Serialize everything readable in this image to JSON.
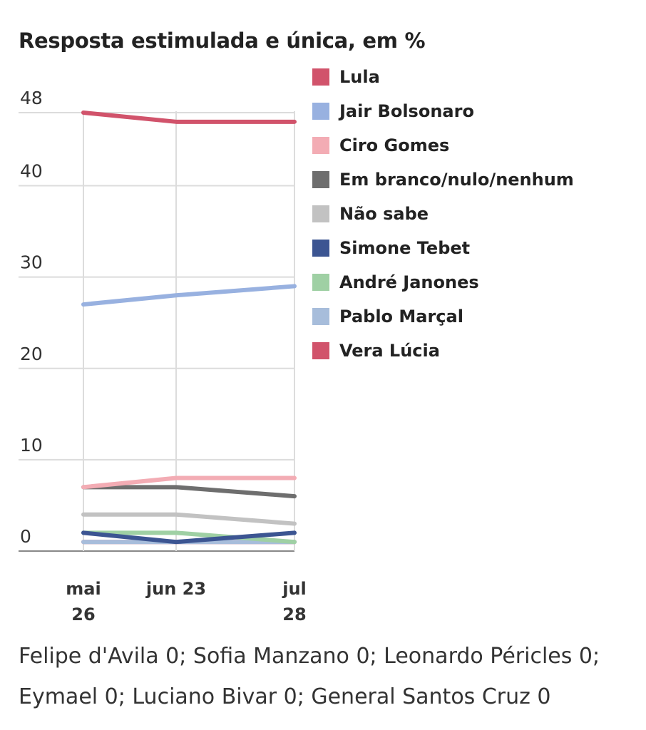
{
  "chart_data": {
    "type": "line",
    "title": "Resposta estimulada e única, em %",
    "categories": [
      "mai 26",
      "jun 23",
      "jul 28"
    ],
    "x_tick_lines": [
      [
        "mai",
        "26"
      ],
      [
        "jun 23"
      ],
      [
        "jul",
        "28"
      ]
    ],
    "y_ticks": [
      "48",
      "40",
      "30",
      "20",
      "10",
      "0"
    ],
    "ylim": [
      0,
      48
    ],
    "grid": true,
    "legend_position": "right",
    "series": [
      {
        "name": "Lula",
        "color": "#d1536b",
        "values": [
          48,
          47,
          47
        ]
      },
      {
        "name": "Jair Bolsonaro",
        "color": "#98b1e0",
        "values": [
          27,
          28,
          29
        ]
      },
      {
        "name": "Ciro Gomes",
        "color": "#f3acb4",
        "values": [
          7,
          8,
          8
        ]
      },
      {
        "name": "Em branco/nulo/nenhum",
        "color": "#6e6e6e",
        "values": [
          7,
          7,
          6
        ]
      },
      {
        "name": "Não sabe",
        "color": "#c2c2c2",
        "values": [
          4,
          4,
          3
        ]
      },
      {
        "name": "Simone Tebet",
        "color": "#3c5592",
        "values": [
          2,
          1,
          2
        ]
      },
      {
        "name": "André Janones",
        "color": "#9fd0a4",
        "values": [
          2,
          2,
          1
        ]
      },
      {
        "name": "Pablo Marçal",
        "color": "#a7bddb",
        "values": [
          1,
          1,
          1
        ]
      },
      {
        "name": "Vera Lúcia",
        "color": "#d1536b",
        "values": [
          1,
          1,
          1
        ]
      }
    ]
  },
  "footnote": "Felipe d'Avila 0; Sofia Manzano 0; Leonardo Péricles 0; Eymael 0; Luciano Bivar 0; General Santos Cruz 0"
}
